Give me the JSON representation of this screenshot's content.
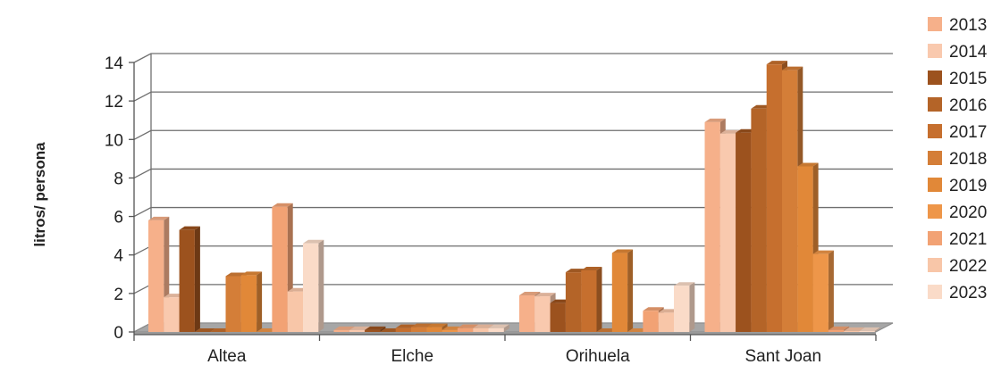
{
  "chart_data": {
    "type": "bar",
    "ylabel": "litros/ persona",
    "ylim": [
      0,
      14
    ],
    "yticks": [
      "0",
      "2",
      "4",
      "6",
      "8",
      "10",
      "12",
      "14"
    ],
    "categories": [
      "Altea",
      "Elche",
      "Orihuela",
      "Sant Joan"
    ],
    "legend_position": "right",
    "grid": true,
    "style": "3d-clustered-column",
    "series": [
      {
        "name": "2013",
        "color": "#F6B08A",
        "values": [
          5.8,
          0.1,
          1.9,
          10.9
        ]
      },
      {
        "name": "2014",
        "color": "#F9C9AE",
        "values": [
          1.8,
          0.1,
          1.85,
          10.3
        ]
      },
      {
        "name": "2015",
        "color": "#9C521E",
        "values": [
          5.3,
          0.1,
          1.5,
          10.35
        ]
      },
      {
        "name": "2016",
        "color": "#B46428",
        "values": [
          0.0,
          0.0,
          3.1,
          11.6
        ]
      },
      {
        "name": "2017",
        "color": "#C66F2E",
        "values": [
          0.0,
          0.2,
          3.2,
          13.9
        ]
      },
      {
        "name": "2018",
        "color": "#D47E38",
        "values": [
          2.9,
          0.25,
          0.0,
          13.6
        ]
      },
      {
        "name": "2019",
        "color": "#E18838",
        "values": [
          2.95,
          0.25,
          4.1,
          8.6
        ]
      },
      {
        "name": "2020",
        "color": "#EE9649",
        "values": [
          0.0,
          0.1,
          0.0,
          4.05
        ]
      },
      {
        "name": "2021",
        "color": "#F2A274",
        "values": [
          6.5,
          0.2,
          1.1,
          0.1
        ]
      },
      {
        "name": "2022",
        "color": "#F8C6A8",
        "values": [
          2.1,
          0.2,
          1.0,
          0.05
        ]
      },
      {
        "name": "2023",
        "color": "#FADBC8",
        "values": [
          4.6,
          0.2,
          2.4,
          0.05
        ]
      }
    ]
  }
}
